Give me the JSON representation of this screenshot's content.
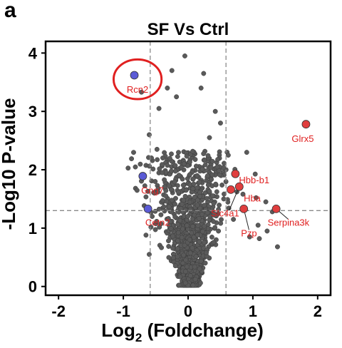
{
  "panel_letter": "a",
  "chart_data": {
    "type": "scatter",
    "title": "SF Vs Ctrl",
    "xlabel": "Log2 (Foldchange)",
    "xlabel_main": "Log",
    "xlabel_sub": "2",
    "xlabel_rest": " (Foldchange)",
    "ylabel": "-Log10 P-value",
    "xlim": [
      -2.2,
      2.2
    ],
    "ylim": [
      -0.15,
      4.2
    ],
    "xticks": [
      -2,
      -1,
      0,
      1,
      2
    ],
    "yticks": [
      0,
      1,
      2,
      3,
      4
    ],
    "thresholds": {
      "fc": [
        -0.585,
        0.585
      ],
      "p": 1.3
    },
    "grid": false,
    "colors": {
      "background_points": "#5a5a5a",
      "down": "#5b5bd6",
      "up": "#e03e3e",
      "label": "#e02020",
      "highlight_ring": "#e02020",
      "threshold": "#8a8a8a"
    },
    "highlight": {
      "label": "Rcn2",
      "x": -0.78,
      "y": 3.55,
      "rx": 0.37,
      "ry": 0.34
    },
    "labeled_points": [
      {
        "label": "Rcn2",
        "x": -0.83,
        "y": 3.62,
        "group": "down",
        "lx": -0.78,
        "ly": 3.38
      },
      {
        "label": "Gng7",
        "x": -0.7,
        "y": 1.89,
        "group": "down",
        "lx": -0.55,
        "ly": 1.65
      },
      {
        "label": "Cetn2",
        "x": -0.62,
        "y": 1.33,
        "group": "down",
        "lx": -0.47,
        "ly": 1.1
      },
      {
        "label": "Glrx5",
        "x": 1.82,
        "y": 2.78,
        "group": "up",
        "lx": 1.77,
        "ly": 2.54
      },
      {
        "label": "Hbb-b1",
        "x": 0.73,
        "y": 1.93,
        "group": "up",
        "lx": 1.02,
        "ly": 1.83
      },
      {
        "label": "Hba",
        "x": 0.66,
        "y": 1.66,
        "group": "up",
        "lx": 0.99,
        "ly": 1.52
      },
      {
        "label": "Slc4a1",
        "x": 0.79,
        "y": 1.71,
        "group": "up",
        "lx": 0.57,
        "ly": 1.26
      },
      {
        "label": "Pzp",
        "x": 0.86,
        "y": 1.33,
        "group": "up",
        "lx": 0.94,
        "ly": 0.92
      },
      {
        "label": "Serpina3k",
        "x": 1.36,
        "y": 1.33,
        "group": "up",
        "lx": 1.55,
        "ly": 1.1
      }
    ]
  }
}
